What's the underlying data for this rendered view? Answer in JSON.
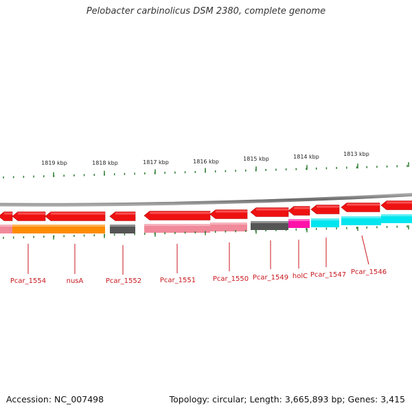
{
  "title": "Pelobacter carbinolicus DSM 2380, complete genome",
  "footer": {
    "accession": "Accession: NC_007498",
    "summary": "Topology: circular; Length: 3,665,893 bp; Genes: 3,415"
  },
  "colors": {
    "background": "#ffffff",
    "backbone": "#8c8c8c",
    "tick": "#2e7d32",
    "gene_arrow": "#ee1111",
    "label": "#c8161d"
  },
  "scale_labels": [
    "1819 kbp",
    "1818 kbp",
    "1817 kbp",
    "1816 kbp",
    "1815 kbp",
    "1814 kbp",
    "1813 kbp"
  ],
  "cog_bars": [
    {
      "color": "#f08a9a"
    },
    {
      "color": "#ff8c00"
    },
    {
      "color": "#555555"
    },
    {
      "color": "#f08a9a"
    },
    {
      "color": "#f08a9a"
    },
    {
      "color": "#555555"
    },
    {
      "color": "#ff11aa"
    },
    {
      "color": "#00e5ee"
    },
    {
      "color": "#00e5ee"
    },
    {
      "color": "#00e5ee"
    }
  ],
  "genes": [
    {
      "label": "Pcar_1554"
    },
    {
      "label": "nusA"
    },
    {
      "label": "Pcar_1552"
    },
    {
      "label": "Pcar_1551"
    },
    {
      "label": "Pcar_1550"
    },
    {
      "label": "Pcar_1549"
    },
    {
      "label": "holC"
    },
    {
      "label": "Pcar_1547"
    },
    {
      "label": "Pcar_1546"
    }
  ]
}
